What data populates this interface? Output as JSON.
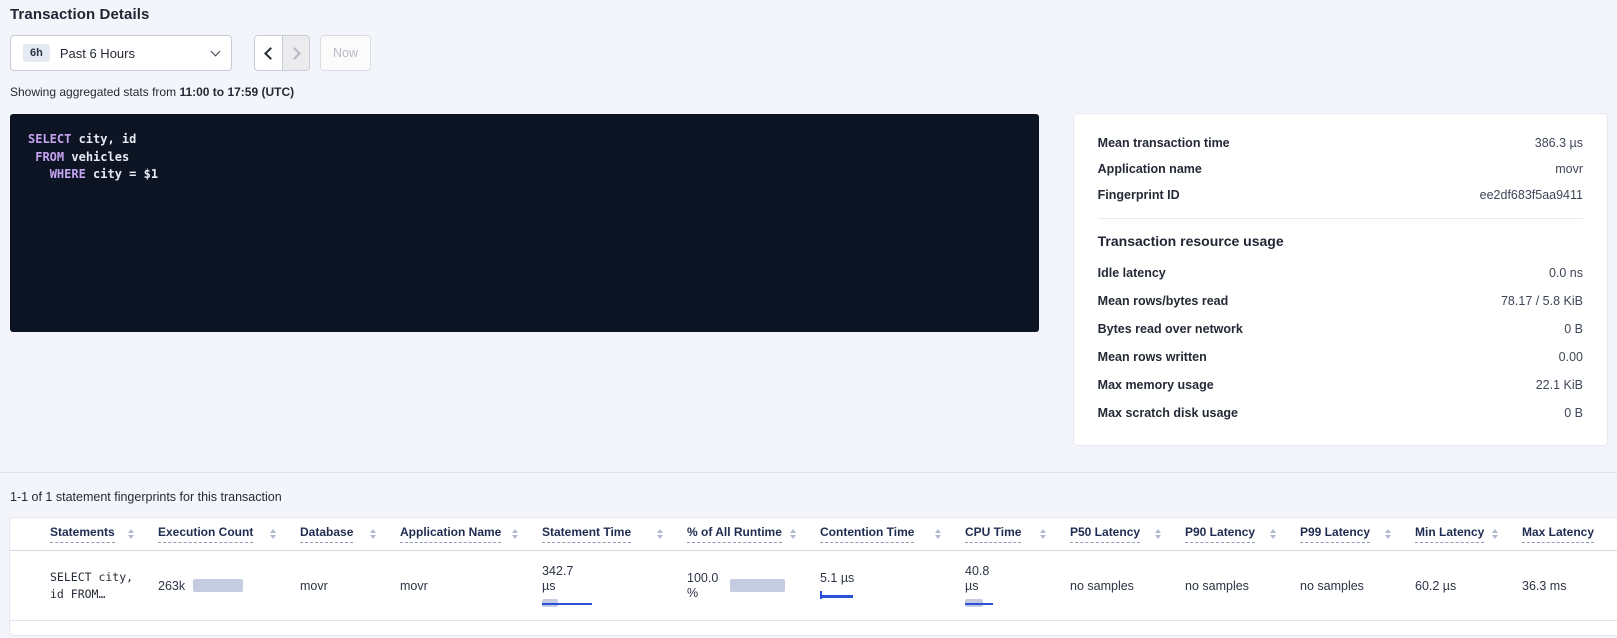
{
  "page": {
    "title": "Transaction Details"
  },
  "time_picker": {
    "badge": "6h",
    "label": "Past 6 Hours",
    "now_label": "Now",
    "icons": {
      "dropdown": "chevron-down",
      "prev": "caret-left",
      "next": "caret-right"
    }
  },
  "subtitle": {
    "prefix": "Showing aggregated stats from ",
    "range": "11:00 to 17:59 (UTC)"
  },
  "sql": {
    "lines": [
      {
        "indent": "",
        "keyword": "SELECT",
        "rest": " city, id"
      },
      {
        "indent": " ",
        "keyword": "FROM",
        "rest": " vehicles"
      },
      {
        "indent": "   ",
        "keyword": "WHERE",
        "rest": " city = $1"
      }
    ]
  },
  "summary": {
    "rows": [
      {
        "label": "Mean transaction time",
        "value": "386.3 µs"
      },
      {
        "label": "Application name",
        "value": "movr"
      },
      {
        "label": "Fingerprint ID",
        "value": "ee2df683f5aa9411"
      }
    ],
    "resource_heading": "Transaction resource usage",
    "resource_rows": [
      {
        "label": "Idle latency",
        "value": "0.0 ns"
      },
      {
        "label": "Mean rows/bytes read",
        "value": "78.17 / 5.8 KiB"
      },
      {
        "label": "Bytes read over network",
        "value": "0 B"
      },
      {
        "label": "Mean rows written",
        "value": "0.00"
      },
      {
        "label": "Max memory usage",
        "value": "22.1 KiB"
      },
      {
        "label": "Max scratch disk usage",
        "value": "0 B"
      }
    ]
  },
  "statements_section": {
    "count_text": "1-1 of 1 statement fingerprints for this transaction",
    "columns": [
      "Statements",
      "Execution Count",
      "Database",
      "Application Name",
      "Statement Time",
      "% of All Runtime",
      "Contention Time",
      "CPU Time",
      "P50 Latency",
      "P90 Latency",
      "P99 Latency",
      "Min Latency",
      "Max Latency"
    ],
    "sort_icon": "sort-arrows",
    "row": {
      "statement_line1": "SELECT city,",
      "statement_line2": "id FROM…",
      "execution_count": "263k",
      "database": "movr",
      "application_name": "movr",
      "statement_time_value": "342.7",
      "statement_time_unit": "µs",
      "pct_runtime_value": "100.0",
      "pct_runtime_unit": "%",
      "contention_time": "5.1 µs",
      "cpu_time_value": "40.8",
      "cpu_time_unit": "µs",
      "p50_latency": "no samples",
      "p90_latency": "no samples",
      "p99_latency": "no samples",
      "min_latency": "60.2 µs",
      "max_latency": "36.3 ms"
    }
  },
  "colors": {
    "page_background": "#f4f5fa",
    "sql_box_background": "#0d1525",
    "sql_keyword": "#c5a3f0",
    "bar_fill": "#c5cbe1",
    "bar_line_accent": "#2b50d8"
  }
}
